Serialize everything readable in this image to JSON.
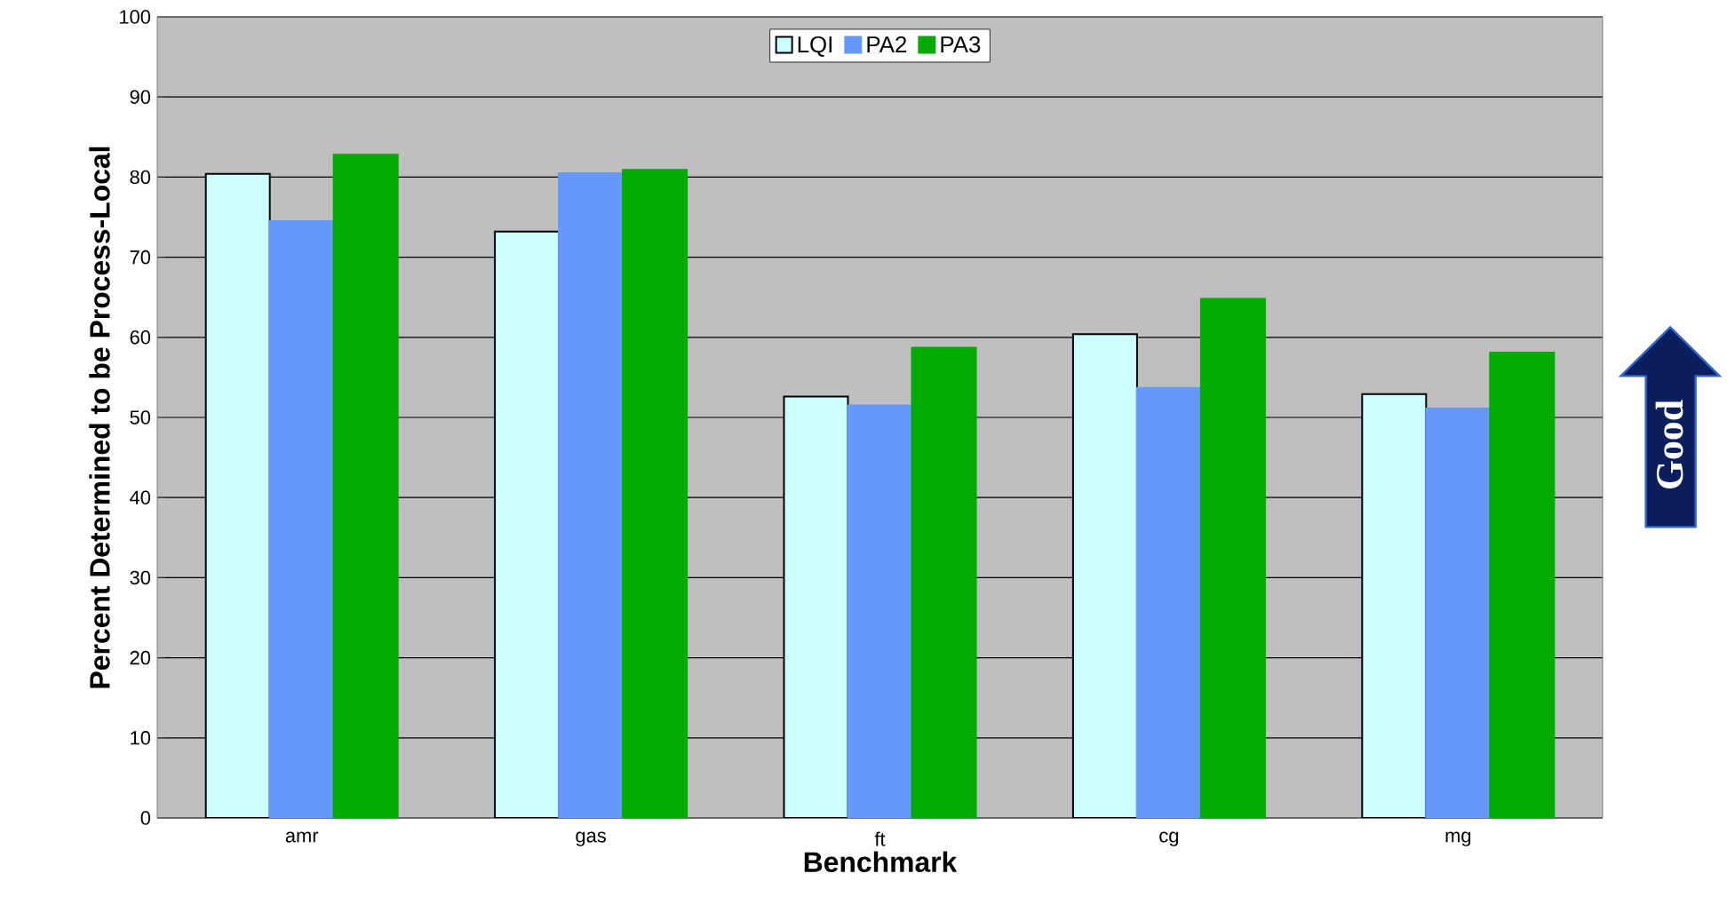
{
  "chart_data": {
    "type": "bar",
    "xlabel": "Benchmark",
    "ylabel": "Percent Determined to be Process-Local",
    "categories": [
      "amr",
      "gas",
      "ft",
      "cg",
      "mg"
    ],
    "series": [
      {
        "name": "LQI",
        "color": "#ccffff",
        "values": [
          80.4,
          73.2,
          52.6,
          60.4,
          52.9
        ]
      },
      {
        "name": "PA2",
        "color": "#6699ff",
        "values": [
          74.5,
          80.5,
          51.5,
          53.7,
          51.1
        ]
      },
      {
        "name": "PA3",
        "color": "#00aa00",
        "values": [
          82.8,
          80.9,
          58.7,
          64.8,
          58.1
        ]
      }
    ],
    "ylim": [
      0,
      100
    ],
    "yticks": [
      0,
      10,
      20,
      30,
      40,
      50,
      60,
      70,
      80,
      90,
      100
    ],
    "grid": "y",
    "legend": "top",
    "annotations": [
      "Good"
    ]
  }
}
